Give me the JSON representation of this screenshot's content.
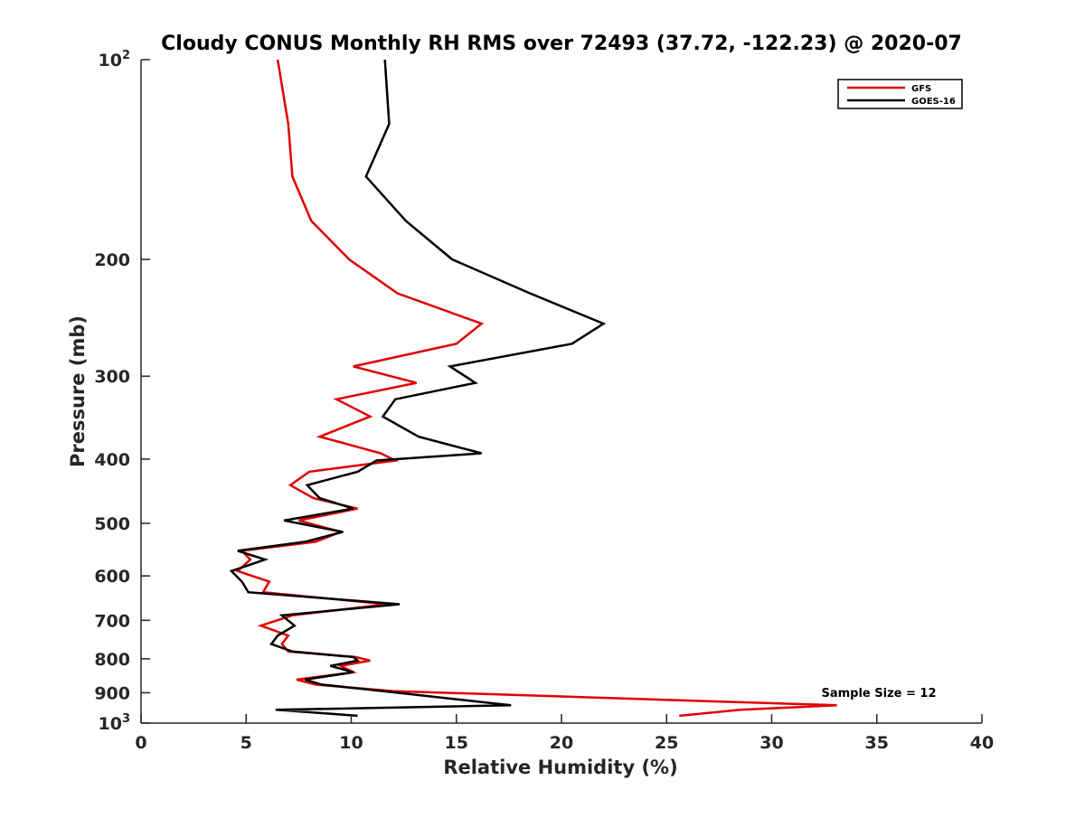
{
  "chart_data": {
    "type": "line",
    "title": "Cloudy CONUS Monthly RH RMS over 72493 (37.72, -122.23) @ 2020-07",
    "xlabel": "Relative Humidity (%)",
    "ylabel": "Pressure (mb)",
    "xlim": [
      0,
      40
    ],
    "ylim": [
      1000,
      100
    ],
    "y_scale": "log",
    "y_reversed": true,
    "grid": false,
    "legend_position": "top-right",
    "x_ticks": [
      {
        "value": 0,
        "label": "0"
      },
      {
        "value": 5,
        "label": "5"
      },
      {
        "value": 10,
        "label": "10"
      },
      {
        "value": 15,
        "label": "15"
      },
      {
        "value": 20,
        "label": "20"
      },
      {
        "value": 25,
        "label": "25"
      },
      {
        "value": 30,
        "label": "30"
      },
      {
        "value": 35,
        "label": "35"
      },
      {
        "value": 40,
        "label": "40"
      }
    ],
    "y_ticks": [
      {
        "value": 100,
        "label": "10",
        "sup": "2"
      },
      {
        "value": 200,
        "label": "200",
        "sup": ""
      },
      {
        "value": 300,
        "label": "300",
        "sup": ""
      },
      {
        "value": 400,
        "label": "400",
        "sup": ""
      },
      {
        "value": 500,
        "label": "500",
        "sup": ""
      },
      {
        "value": 600,
        "label": "600",
        "sup": ""
      },
      {
        "value": 700,
        "label": "700",
        "sup": ""
      },
      {
        "value": 800,
        "label": "800",
        "sup": ""
      },
      {
        "value": 900,
        "label": "900",
        "sup": ""
      },
      {
        "value": 1000,
        "label": "10",
        "sup": "3"
      }
    ],
    "annotation": "Sample Size = 12",
    "series": [
      {
        "name": "GFS",
        "color": "#e00000",
        "points": [
          [
            6.5,
            100
          ],
          [
            7.0,
            125
          ],
          [
            7.2,
            150
          ],
          [
            8.1,
            175
          ],
          [
            9.9,
            200
          ],
          [
            12.2,
            225
          ],
          [
            16.2,
            250
          ],
          [
            15.0,
            268
          ],
          [
            10.1,
            290
          ],
          [
            13.1,
            307
          ],
          [
            9.3,
            325
          ],
          [
            10.9,
            345
          ],
          [
            8.5,
            370
          ],
          [
            11.4,
            392
          ],
          [
            12.1,
            402
          ],
          [
            8.0,
            418
          ],
          [
            7.1,
            438
          ],
          [
            8.2,
            458
          ],
          [
            10.3,
            475
          ],
          [
            7.5,
            495
          ],
          [
            9.5,
            515
          ],
          [
            8.3,
            533
          ],
          [
            4.8,
            550
          ],
          [
            5.2,
            567
          ],
          [
            4.6,
            590
          ],
          [
            6.1,
            612
          ],
          [
            5.8,
            635
          ],
          [
            11.7,
            662
          ],
          [
            7.2,
            688
          ],
          [
            5.7,
            713
          ],
          [
            7.0,
            738
          ],
          [
            6.7,
            760
          ],
          [
            7.0,
            780
          ],
          [
            10.2,
            795
          ],
          [
            10.9,
            805
          ],
          [
            9.5,
            820
          ],
          [
            10.1,
            838
          ],
          [
            7.4,
            860
          ],
          [
            8.3,
            875
          ],
          [
            12.0,
            895
          ],
          [
            33.1,
            940
          ],
          [
            28.5,
            955
          ],
          [
            25.6,
            975
          ]
        ]
      },
      {
        "name": "GOES-16",
        "color": "#000000",
        "points": [
          [
            11.6,
            100
          ],
          [
            11.8,
            125
          ],
          [
            10.7,
            150
          ],
          [
            12.6,
            175
          ],
          [
            14.8,
            200
          ],
          [
            18.5,
            225
          ],
          [
            22.0,
            250
          ],
          [
            20.5,
            268
          ],
          [
            14.7,
            290
          ],
          [
            15.9,
            307
          ],
          [
            12.1,
            325
          ],
          [
            11.5,
            345
          ],
          [
            13.2,
            370
          ],
          [
            16.2,
            392
          ],
          [
            11.2,
            402
          ],
          [
            10.3,
            418
          ],
          [
            7.9,
            438
          ],
          [
            8.5,
            458
          ],
          [
            10.1,
            475
          ],
          [
            6.8,
            495
          ],
          [
            9.6,
            515
          ],
          [
            7.8,
            533
          ],
          [
            4.6,
            550
          ],
          [
            5.9,
            567
          ],
          [
            4.3,
            590
          ],
          [
            4.8,
            612
          ],
          [
            5.1,
            635
          ],
          [
            12.3,
            662
          ],
          [
            6.7,
            688
          ],
          [
            7.3,
            713
          ],
          [
            6.5,
            738
          ],
          [
            6.2,
            760
          ],
          [
            7.2,
            780
          ],
          [
            10.1,
            795
          ],
          [
            10.3,
            805
          ],
          [
            9.0,
            820
          ],
          [
            10.1,
            838
          ],
          [
            7.8,
            860
          ],
          [
            8.6,
            875
          ],
          [
            11.5,
            895
          ],
          [
            17.6,
            940
          ],
          [
            6.4,
            955
          ],
          [
            10.3,
            975
          ]
        ]
      }
    ]
  }
}
